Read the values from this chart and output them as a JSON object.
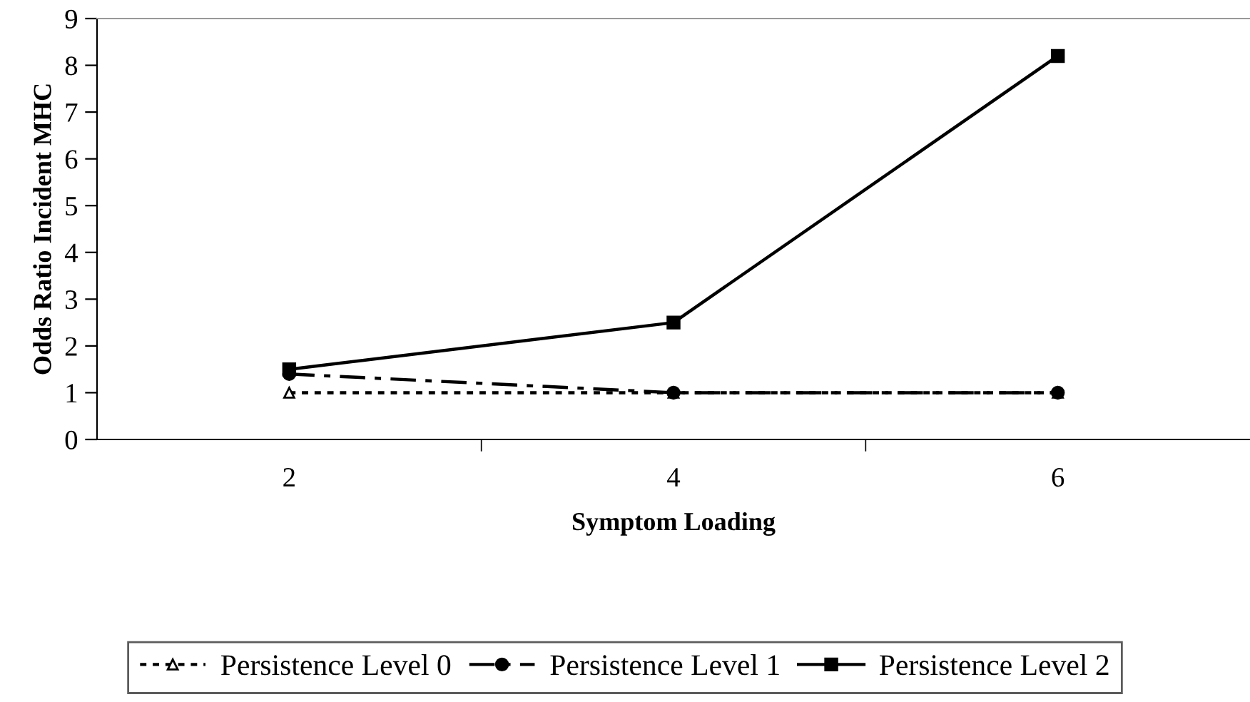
{
  "chart_data": {
    "type": "line",
    "xlabel": "Symptom Loading",
    "ylabel": "Odds Ratio Incident MHC",
    "categories": [
      "2",
      "4",
      "6"
    ],
    "series": [
      {
        "name": "Persistence Level 0",
        "color": "#000000",
        "values": [
          1.0,
          1.0,
          1.0
        ],
        "marker": "triangle",
        "line_style": "dotted"
      },
      {
        "name": "Persistence Level 1",
        "color": "#000000",
        "values": [
          1.4,
          1.0,
          1.0
        ],
        "marker": "circle",
        "line_style": "dashdot"
      },
      {
        "name": "Persistence Level 2",
        "color": "#000000",
        "values": [
          1.5,
          2.5,
          8.2
        ],
        "marker": "square",
        "line_style": "solid"
      }
    ],
    "ylim": [
      0,
      9
    ],
    "yticks": [
      0,
      1,
      2,
      3,
      4,
      5,
      6,
      7,
      8,
      9
    ],
    "grid": false,
    "legend": "bottom"
  }
}
